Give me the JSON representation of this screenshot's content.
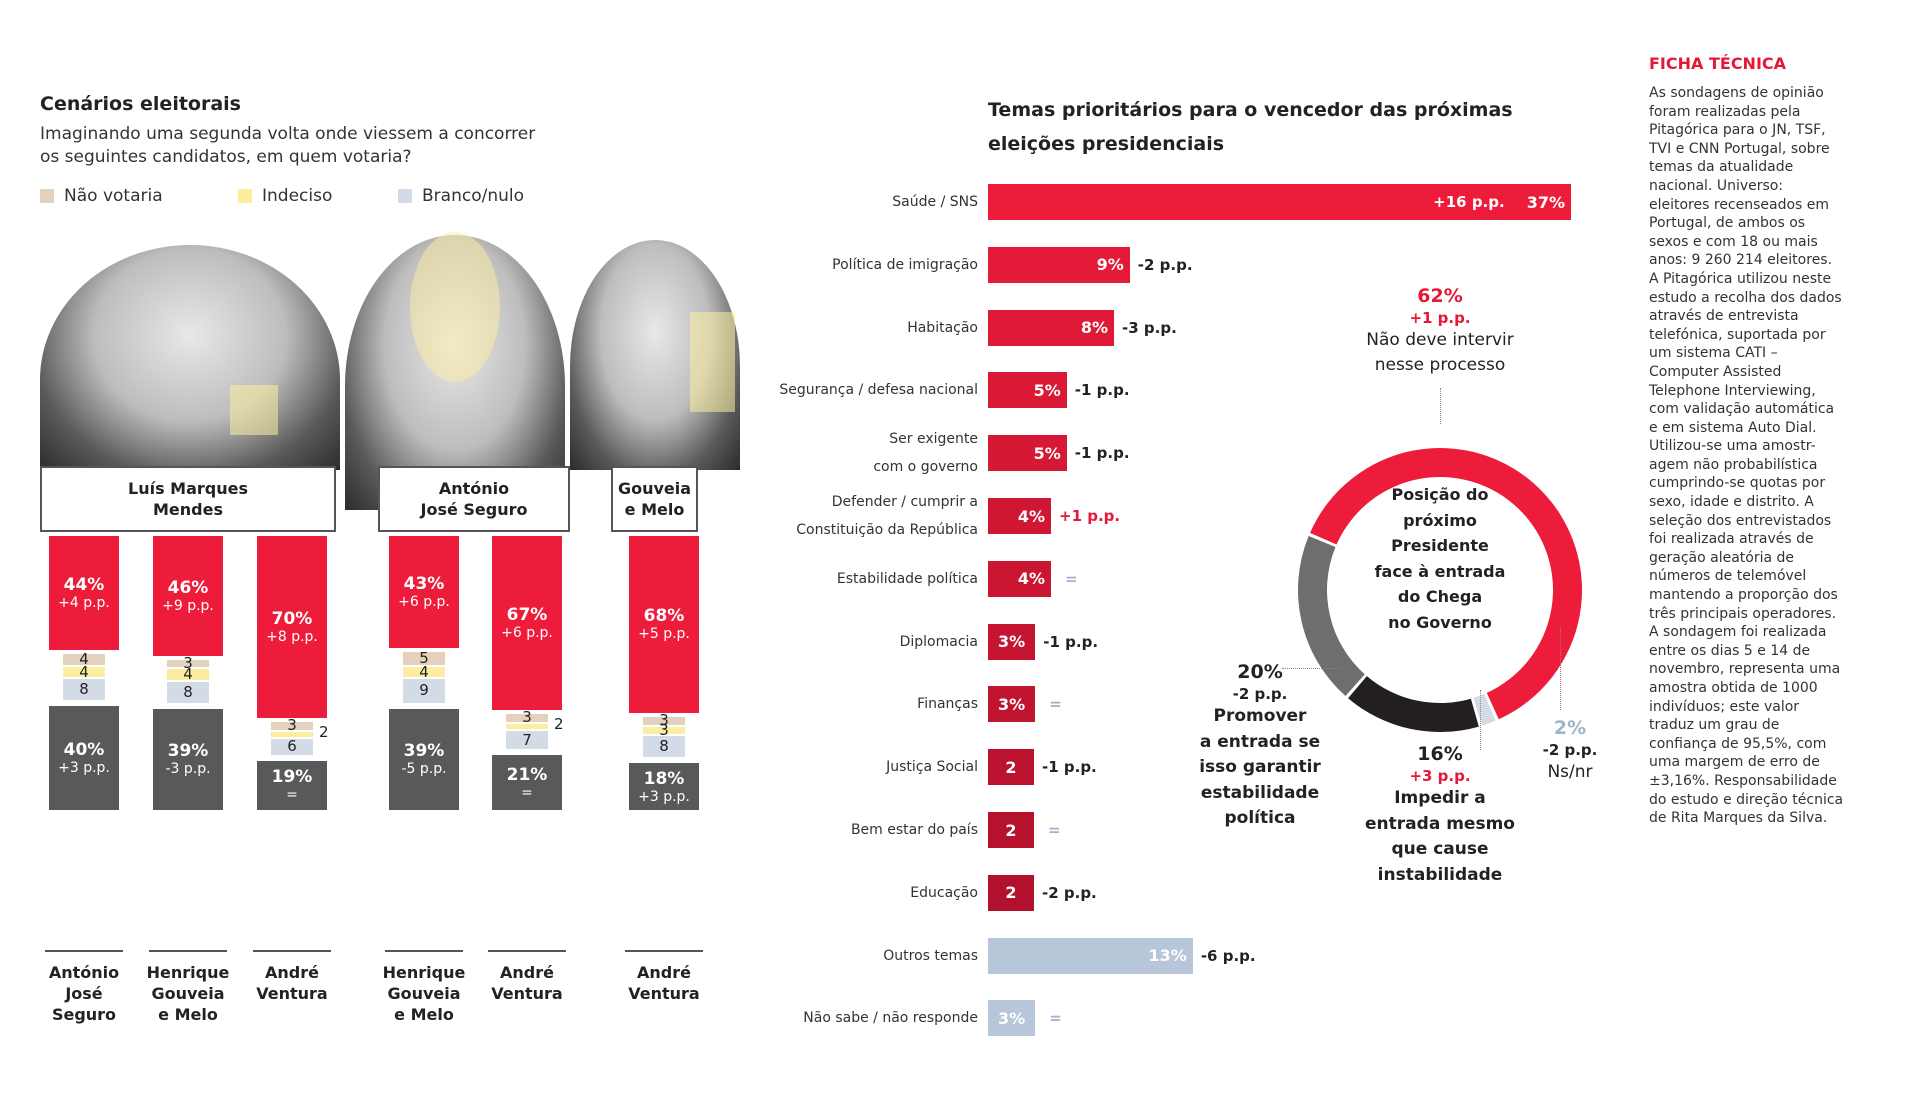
{
  "left": {
    "title": "Cenários eleitorais",
    "subtitle_line1": "Imaginando uma segunda volta onde viessem a concorrer",
    "subtitle_line2": "os seguintes candidatos, em quem votaria?",
    "legend": [
      {
        "label": "Não votaria",
        "color": "#e2d2bd"
      },
      {
        "label": "Indeciso",
        "color": "#fcee9e"
      },
      {
        "label": "Branco/nulo",
        "color": "#d3dbe6"
      }
    ]
  },
  "chart_data": [
    {
      "type": "bar",
      "title": "Cenários eleitorais",
      "subtitle": "Imaginando uma segunda volta onde viessem a concorrer os seguintes candidatos, em quem votaria?",
      "stacking": "diverging",
      "colors": {
        "candidate": "#ed1c3a",
        "opponent": "#58595b",
        "nao_votaria": "#e2d2bd",
        "indeciso": "#fcee9e",
        "branco_nulo": "#d3dbe6"
      },
      "groups": [
        {
          "candidate": "Luís Marques Mendes",
          "candidate_line1": "Luís Marques",
          "candidate_line2": "Mendes",
          "scenarios": [
            {
              "opponent_lines": [
                "António",
                "José",
                "Seguro"
              ],
              "candidate_pct": 44,
              "candidate_delta": "+4 p.p.",
              "nao_votaria": 4,
              "indeciso": 4,
              "branco_nulo": 8,
              "opponent_pct": 40,
              "opponent_delta": "+3 p.p."
            },
            {
              "opponent_lines": [
                "Henrique",
                "Gouveia",
                "e Melo"
              ],
              "candidate_pct": 46,
              "candidate_delta": "+9 p.p.",
              "nao_votaria": 3,
              "indeciso": 4,
              "branco_nulo": 8,
              "opponent_pct": 39,
              "opponent_delta": "-3 p.p."
            },
            {
              "opponent_lines": [
                "André",
                "Ventura"
              ],
              "candidate_pct": 70,
              "candidate_delta": "+8 p.p.",
              "nao_votaria": 3,
              "indeciso": 2,
              "branco_nulo": 6,
              "opponent_pct": 19,
              "opponent_delta": "="
            }
          ]
        },
        {
          "candidate": "António José Seguro",
          "candidate_line1": "António",
          "candidate_line2": "José Seguro",
          "scenarios": [
            {
              "opponent_lines": [
                "Henrique",
                "Gouveia",
                "e Melo"
              ],
              "candidate_pct": 43,
              "candidate_delta": "+6 p.p.",
              "nao_votaria": 5,
              "indeciso": 4,
              "branco_nulo": 9,
              "opponent_pct": 39,
              "opponent_delta": "-5 p.p."
            },
            {
              "opponent_lines": [
                "André",
                "Ventura"
              ],
              "candidate_pct": 67,
              "candidate_delta": "+6 p.p.",
              "nao_votaria": 3,
              "indeciso": 2,
              "branco_nulo": 7,
              "opponent_pct": 21,
              "opponent_delta": "="
            }
          ]
        },
        {
          "candidate": "Gouveia e Melo",
          "candidate_line1": "Gouveia",
          "candidate_line2": "e Melo",
          "scenarios": [
            {
              "opponent_lines": [
                "André",
                "Ventura"
              ],
              "candidate_pct": 68,
              "candidate_delta": "+5 p.p.",
              "nao_votaria": 3,
              "indeciso": 3,
              "branco_nulo": 8,
              "opponent_pct": 18,
              "opponent_delta": "+3 p.p."
            }
          ]
        }
      ]
    },
    {
      "type": "bar",
      "orientation": "horizontal",
      "title": "Temas prioritários para o vencedor das próximas eleições presidenciais",
      "xlim": [
        0,
        37
      ],
      "categories": [
        "Saúde / SNS",
        "Política de imigração",
        "Habitação",
        "Segurança / defesa nacional",
        "Ser exigente com o governo",
        "Defender / cumprir a Constituição da República",
        "Estabilidade política",
        "Diplomacia",
        "Finanças",
        "Justiça Social",
        "Bem estar do país",
        "Educação",
        "Outros temas",
        "Não sabe / não responde"
      ],
      "rows": [
        {
          "label_lines": [
            "Saúde / SNS"
          ],
          "value": 37,
          "value_label": "37%",
          "delta": "+16 p.p.",
          "delta_style": "inside",
          "color": "#ed1c3a"
        },
        {
          "label_lines": [
            "Política de imigração"
          ],
          "value": 9,
          "value_label": "9%",
          "delta": "-2 p.p.",
          "delta_style": "dark",
          "color": "#e41b38"
        },
        {
          "label_lines": [
            "Habitação"
          ],
          "value": 8,
          "value_label": "8%",
          "delta": "-3 p.p.",
          "delta_style": "dark",
          "color": "#df1a36"
        },
        {
          "label_lines": [
            "Segurança / defesa nacional"
          ],
          "value": 5,
          "value_label": "5%",
          "delta": "-1 p.p.",
          "delta_style": "dark",
          "color": "#da1935"
        },
        {
          "label_lines": [
            "Ser exigente",
            "com o governo"
          ],
          "value": 5,
          "value_label": "5%",
          "delta": "-1 p.p.",
          "delta_style": "dark",
          "color": "#d51834"
        },
        {
          "label_lines": [
            "Defender / cumprir a",
            "Constituição da República"
          ],
          "value": 4,
          "value_label": "4%",
          "delta": "+1 p.p.",
          "delta_style": "red",
          "color": "#cf1733"
        },
        {
          "label_lines": [
            "Estabilidade política"
          ],
          "value": 4,
          "value_label": "4%",
          "delta": "=",
          "delta_style": "equal",
          "color": "#ca1632"
        },
        {
          "label_lines": [
            "Diplomacia"
          ],
          "value": 3,
          "value_label": "3%",
          "delta": "-1 p.p.",
          "delta_style": "dark",
          "color": "#c51531"
        },
        {
          "label_lines": [
            "Finanças"
          ],
          "value": 3,
          "value_label": "3%",
          "delta": "=",
          "delta_style": "equal",
          "color": "#c01430"
        },
        {
          "label_lines": [
            "Justiça Social"
          ],
          "value": 2,
          "value_label": "2",
          "delta": "-1 p.p.",
          "delta_style": "dark",
          "color": "#bb132f"
        },
        {
          "label_lines": [
            "Bem estar do país"
          ],
          "value": 2,
          "value_label": "2",
          "delta": "=",
          "delta_style": "equal",
          "color": "#b6122e"
        },
        {
          "label_lines": [
            "Educação"
          ],
          "value": 2,
          "value_label": "2",
          "delta": "-2 p.p.",
          "delta_style": "dark",
          "color": "#b1112d"
        },
        {
          "label_lines": [
            "Outros temas"
          ],
          "value": 13,
          "value_label": "13%",
          "delta": "-6 p.p.",
          "delta_style": "dark",
          "color": "#b7c6d9"
        },
        {
          "label_lines": [
            "Não sabe / não responde"
          ],
          "value": 3,
          "value_label": "3%",
          "delta": "=",
          "delta_style": "equal",
          "color": "#b7c6d9"
        }
      ]
    },
    {
      "type": "pie",
      "variant": "donut",
      "title": "Posição do próximo Presidente face à entrada do Chega no Governo",
      "title_lines": [
        "Posição do",
        "próximo",
        "Presidente",
        "face à entrada",
        "do Chega",
        "no Governo"
      ],
      "slices": [
        {
          "label": "Não deve intervir nesse processo",
          "label_lines": [
            "Não deve intervir",
            "nesse processo"
          ],
          "value": 62,
          "value_label": "62%",
          "delta": "+1 p.p.",
          "color": "#ed1c3a",
          "value_color": "#e51937",
          "delta_color": "#e51937"
        },
        {
          "label": "Ns/nr",
          "label_lines": [
            "Ns/nr"
          ],
          "value": 2,
          "value_label": "2%",
          "delta": "-2 p.p.",
          "color": "#d3dbe6",
          "value_color": "#9fb3cc",
          "delta_color": "#222"
        },
        {
          "label": "Impedir a entrada mesmo que cause instabilidade",
          "label_lines": [
            "Impedir a",
            "entrada mesmo",
            "que cause",
            "instabilidade"
          ],
          "value": 16,
          "value_label": "16%",
          "delta": "+3 p.p.",
          "color": "#231f20",
          "value_color": "#222",
          "delta_color": "#e51937"
        },
        {
          "label": "Promover a entrada se isso garantir estabilidade política",
          "label_lines": [
            "Promover",
            "a entrada se",
            "isso garantir",
            "estabilidade",
            "política"
          ],
          "value": 20,
          "value_label": "20%",
          "delta": "-2 p.p.",
          "color": "#6d6e70",
          "value_color": "#222",
          "delta_color": "#222"
        }
      ]
    }
  ],
  "middle": {
    "title_line1": "Temas prioritários para o vencedor das próximas",
    "title_line2": "eleições presidenciais"
  },
  "ficha": {
    "title": "FICHA TÉCNICA",
    "lines": [
      "As sondagens de opinião",
      "foram realizadas pela",
      "Pitagórica para o JN, TSF,",
      "TVI e CNN Portugal, sobre",
      "temas da atualidade",
      "nacional. Universo:",
      "eleitores recenseados em",
      "Portugal, de ambos os",
      "sexos e com 18 ou mais",
      "anos: 9 260 214 eleitores.",
      "A Pitagórica utilizou neste",
      "estudo a recolha dos dados",
      "através de entrevista",
      "telefónica, suportada por",
      "um sistema CATI –",
      "Computer Assisted",
      "Telephone Interviewing,",
      "com validação automática",
      "e em sistema Auto Dial.",
      "Utilizou-se uma amostr-",
      "agem não probabilística",
      "cumprindo-se quotas por",
      "sexo, idade e distrito. A",
      "seleção dos entrevistados",
      "foi realizada através de",
      "geração aleatória de",
      "números de telemóvel",
      "mantendo a proporção dos",
      "três principais operadores.",
      "A sondagem foi realizada",
      "entre os dias 5 e 14 de",
      "novembro, representa uma",
      "amostra obtida de 1000",
      "indivíduos; este valor",
      "traduz um grau de",
      "confiança de 95,5%, com",
      "uma margem de erro de",
      "±3,16%. Responsabilidade",
      "do estudo e direção técnica",
      "de Rita Marques da Silva."
    ]
  }
}
